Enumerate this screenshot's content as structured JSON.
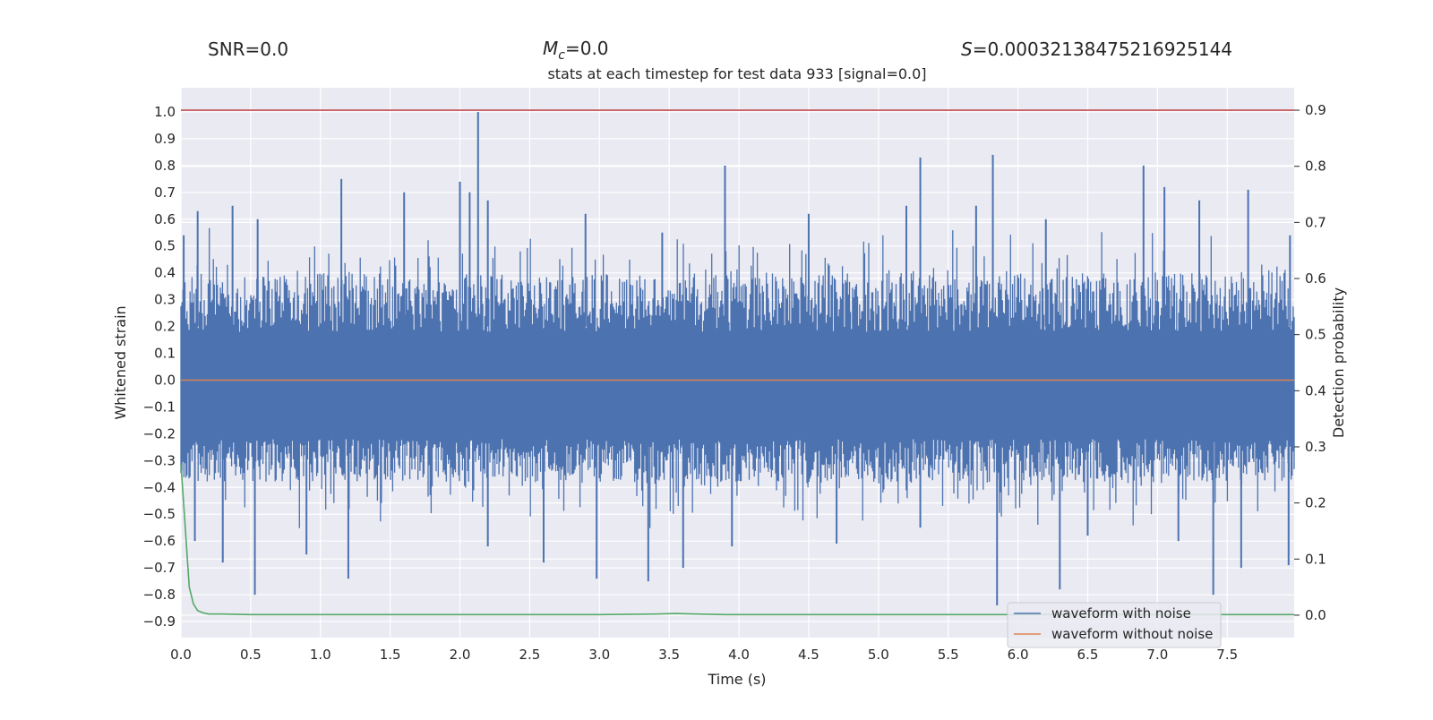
{
  "header": {
    "snr": "SNR=0.0",
    "mc_symbol": "M",
    "mc_sub": "c",
    "mc_value": "=0.0",
    "s_symbol": "S",
    "s_value": "=0.000321384752169251​44"
  },
  "chart_data": {
    "type": "line",
    "title": "stats at each timestep for test data 933 [signal=0.0]",
    "xlabel": "Time (s)",
    "ylabel": "Whitened strain",
    "y2label": "Detection probability",
    "xlim": [
      0.0,
      7.98
    ],
    "ylim": [
      -0.96,
      1.09
    ],
    "y2lim": [
      -0.04,
      0.94
    ],
    "xticks": [
      "0.0",
      "0.5",
      "1.0",
      "1.5",
      "2.0",
      "2.5",
      "3.0",
      "3.5",
      "4.0",
      "4.5",
      "5.0",
      "5.5",
      "6.0",
      "6.5",
      "7.0",
      "7.5"
    ],
    "yticks": [
      "1.0",
      "0.9",
      "0.8",
      "0.7",
      "0.6",
      "0.5",
      "0.4",
      "0.3",
      "0.2",
      "0.1",
      "0.0",
      "−0.1",
      "−0.2",
      "−0.3",
      "−0.4",
      "−0.5",
      "−0.6",
      "−0.7",
      "−0.8",
      "−0.9"
    ],
    "y2ticks": [
      "0.9",
      "0.8",
      "0.7",
      "0.6",
      "0.5",
      "0.4",
      "0.3",
      "0.2",
      "0.1",
      "0.0"
    ],
    "grid": true,
    "legend_position": "lower-right",
    "series": [
      {
        "name": "waveform with noise",
        "axis": "left",
        "color": "#4c72b0",
        "style": "dense noise",
        "typical_max": 0.4,
        "typical_min": -0.38,
        "peaks": [
          [
            0.02,
            0.54
          ],
          [
            0.12,
            0.63
          ],
          [
            0.37,
            0.65
          ],
          [
            0.55,
            0.6
          ],
          [
            1.15,
            0.75
          ],
          [
            1.6,
            0.7
          ],
          [
            2.0,
            0.74
          ],
          [
            2.07,
            0.7
          ],
          [
            2.13,
            1.0
          ],
          [
            2.2,
            0.67
          ],
          [
            2.9,
            0.62
          ],
          [
            3.45,
            0.55
          ],
          [
            3.9,
            0.8
          ],
          [
            4.5,
            0.62
          ],
          [
            5.2,
            0.65
          ],
          [
            5.3,
            0.83
          ],
          [
            5.7,
            0.65
          ],
          [
            5.82,
            0.84
          ],
          [
            6.2,
            0.6
          ],
          [
            6.9,
            0.8
          ],
          [
            7.05,
            0.72
          ],
          [
            7.3,
            0.67
          ],
          [
            7.65,
            0.71
          ],
          [
            7.95,
            0.54
          ]
        ],
        "troughs": [
          [
            0.1,
            -0.6
          ],
          [
            0.3,
            -0.68
          ],
          [
            0.53,
            -0.8
          ],
          [
            0.9,
            -0.65
          ],
          [
            1.2,
            -0.74
          ],
          [
            2.2,
            -0.62
          ],
          [
            2.6,
            -0.68
          ],
          [
            2.98,
            -0.74
          ],
          [
            3.35,
            -0.75
          ],
          [
            3.6,
            -0.7
          ],
          [
            3.95,
            -0.62
          ],
          [
            4.7,
            -0.61
          ],
          [
            5.3,
            -0.55
          ],
          [
            5.85,
            -0.84
          ],
          [
            6.3,
            -0.78
          ],
          [
            6.5,
            -0.58
          ],
          [
            7.15,
            -0.6
          ],
          [
            7.4,
            -0.8
          ],
          [
            7.6,
            -0.7
          ],
          [
            7.94,
            -0.69
          ]
        ]
      },
      {
        "name": "waveform without noise",
        "axis": "left",
        "color": "#dd8452",
        "x": [
          0.0,
          7.98
        ],
        "y": [
          0.0,
          0.0
        ]
      },
      {
        "name": "",
        "axis": "right",
        "color": "#55a868",
        "x": [
          0.0,
          0.03,
          0.06,
          0.09,
          0.12,
          0.16,
          0.2,
          0.3,
          0.5,
          1.0,
          2.0,
          3.0,
          3.4,
          3.55,
          3.7,
          3.9,
          5.0,
          6.0,
          7.0,
          7.98
        ],
        "y": [
          0.27,
          0.16,
          0.05,
          0.02,
          0.008,
          0.004,
          0.002,
          0.002,
          0.001,
          0.001,
          0.001,
          0.001,
          0.002,
          0.003,
          0.002,
          0.001,
          0.001,
          0.001,
          0.001,
          0.001
        ]
      },
      {
        "name": "",
        "axis": "right",
        "color": "#c44e52",
        "x": [
          0.0,
          7.98
        ],
        "y": [
          0.9,
          0.9
        ]
      }
    ]
  }
}
